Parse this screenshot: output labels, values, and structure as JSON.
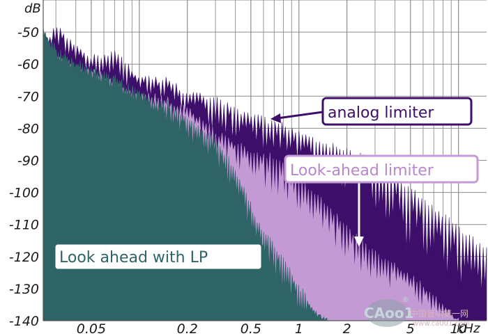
{
  "chart_data": {
    "type": "area",
    "title": "",
    "x_scale": "log",
    "xlim": [
      0.025,
      15
    ],
    "ylim": [
      -140,
      -40
    ],
    "y_unit": "dB",
    "x_unit": "kHz",
    "y_ticks": [
      "-50",
      "-60",
      "-70",
      "-80",
      "-90",
      "-100",
      "-110",
      "-120",
      "-130",
      "-140"
    ],
    "x_ticks": [
      {
        "value": 0.05,
        "label": "0.05"
      },
      {
        "value": 0.2,
        "label": "0.2"
      },
      {
        "value": 0.5,
        "label": "0.5"
      },
      {
        "value": 1,
        "label": "1"
      },
      {
        "value": 2,
        "label": "2"
      },
      {
        "value": 5,
        "label": "5"
      },
      {
        "value": 10,
        "label": "10"
      }
    ],
    "grid": true,
    "series": [
      {
        "name": "analog limiter",
        "color": "#3d0f6b",
        "x": [
          0.025,
          0.03,
          0.04,
          0.05,
          0.07,
          0.1,
          0.15,
          0.2,
          0.3,
          0.5,
          0.7,
          1,
          1.5,
          2,
          3,
          4,
          5,
          7,
          10,
          15
        ],
        "y_upper": [
          -53,
          -47,
          -54,
          -57,
          -55,
          -63,
          -64,
          -68,
          -70,
          -75,
          -77,
          -80,
          -84,
          -86,
          -89,
          -94,
          -98,
          -104,
          -110,
          -117
        ],
        "y_lower": [
          -55,
          -57,
          -62,
          -65,
          -68,
          -72,
          -75,
          -78,
          -84,
          -88,
          -92,
          -96,
          -100,
          -105,
          -112,
          -118,
          -125,
          -130,
          -135,
          -139
        ]
      },
      {
        "name": "Look-ahead limiter",
        "color": "#c49ad4",
        "x": [
          0.025,
          0.03,
          0.04,
          0.05,
          0.07,
          0.1,
          0.15,
          0.2,
          0.3,
          0.5,
          0.7,
          1,
          1.5,
          2,
          3,
          4,
          5,
          7,
          10
        ],
        "y_upper": [
          -52,
          -56,
          -60,
          -61,
          -64,
          -68,
          -70,
          -73,
          -80,
          -86,
          -88,
          -95,
          -103,
          -110,
          -118,
          -121,
          -125,
          -131,
          -139
        ],
        "y_lower": [
          -55,
          -60,
          -64,
          -66,
          -70,
          -74,
          -78,
          -82,
          -90,
          -99,
          -105,
          -112,
          -120,
          -127,
          -132,
          -136,
          -138,
          -140,
          -140
        ]
      },
      {
        "name": "Look ahead with LP",
        "color": "#2f6467",
        "x": [
          0.025,
          0.03,
          0.04,
          0.05,
          0.07,
          0.1,
          0.15,
          0.2,
          0.3,
          0.4,
          0.5,
          0.6,
          0.7,
          0.8,
          1.0,
          1.2,
          1.5
        ],
        "y_upper": [
          -48,
          -54,
          -58,
          -60,
          -63,
          -68,
          -71,
          -76,
          -82,
          -92,
          -103,
          -112,
          -115,
          -120,
          -128,
          -134,
          -139
        ],
        "y_lower": [
          -55,
          -60,
          -64,
          -66,
          -70,
          -74,
          -80,
          -86,
          -95,
          -105,
          -115,
          -124,
          -130,
          -135,
          -140,
          -140,
          -140
        ]
      }
    ],
    "annotations": [
      {
        "text": "analog limiter",
        "series": "analog limiter"
      },
      {
        "text": "Look-ahead limiter",
        "series": "Look-ahead limiter"
      },
      {
        "text": "Look ahead with LP",
        "series": "Look ahead with LP"
      }
    ]
  },
  "watermark": {
    "logo": "CAoo1",
    "registered": "®",
    "site_name": "中国音响第一网",
    "site_url": "www.ca001.com"
  }
}
